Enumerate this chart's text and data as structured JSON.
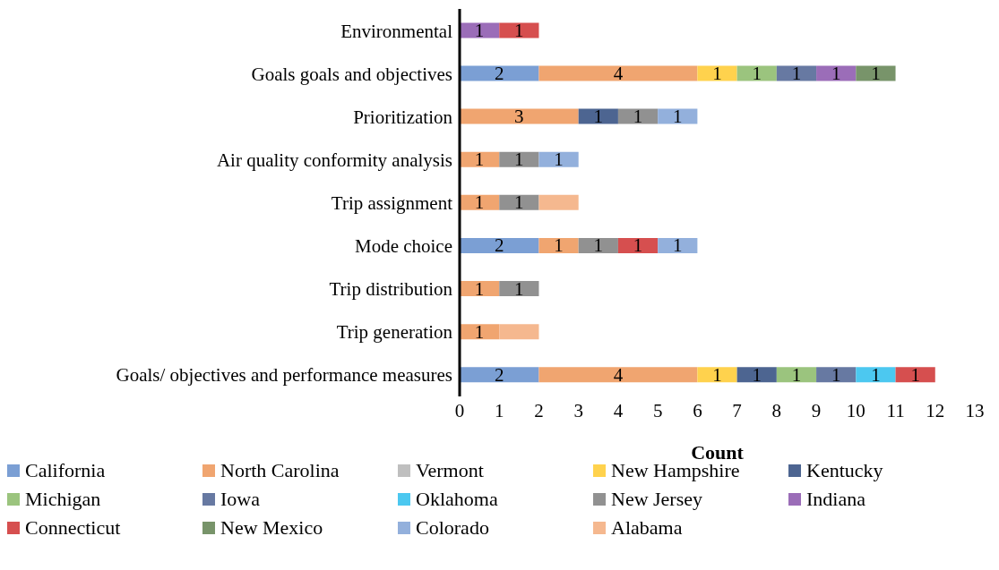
{
  "chart_data": {
    "type": "bar",
    "orientation": "horizontal",
    "stacked": true,
    "data_labels": true,
    "legend": "bottom",
    "xlabel": "Count",
    "xlim": [
      0,
      13
    ],
    "xticks": [
      0,
      1,
      2,
      3,
      4,
      5,
      6,
      7,
      8,
      9,
      10,
      11,
      12,
      13
    ],
    "categories": [
      "Environmental",
      "Goals goals and objectives",
      "Prioritization",
      "Air quality conformity analysis",
      "Trip assignment",
      "Mode choice",
      "Trip distribution",
      "Trip generation",
      "Goals/ objectives and performance measures"
    ],
    "series": [
      {
        "name": "California",
        "color": "#7b9fd4",
        "values": [
          null,
          2,
          null,
          null,
          null,
          2,
          null,
          null,
          2
        ]
      },
      {
        "name": "North Carolina",
        "color": "#f0a570",
        "values": [
          null,
          4,
          3,
          1,
          1,
          1,
          1,
          1,
          4
        ]
      },
      {
        "name": "Vermont",
        "color": "#bfbfbf",
        "values": [
          null,
          null,
          null,
          null,
          null,
          null,
          null,
          null,
          null
        ]
      },
      {
        "name": "New Hampshire",
        "color": "#ffd24d",
        "values": [
          null,
          1,
          null,
          null,
          null,
          null,
          null,
          null,
          1
        ]
      },
      {
        "name": "Kentucky",
        "color": "#4d6591",
        "values": [
          null,
          null,
          1,
          null,
          null,
          null,
          null,
          null,
          1
        ]
      },
      {
        "name": "Michigan",
        "color": "#9bc47e",
        "values": [
          null,
          1,
          null,
          null,
          null,
          null,
          null,
          null,
          1
        ]
      },
      {
        "name": "Iowa",
        "color": "#6779a2",
        "values": [
          null,
          1,
          null,
          null,
          null,
          null,
          null,
          null,
          1
        ]
      },
      {
        "name": "Oklahoma",
        "color": "#4cc8f0",
        "values": [
          null,
          null,
          null,
          null,
          null,
          null,
          null,
          null,
          1
        ]
      },
      {
        "name": "New Jersey",
        "color": "#919191",
        "values": [
          null,
          null,
          1,
          1,
          1,
          1,
          1,
          null,
          null
        ]
      },
      {
        "name": "Indiana",
        "color": "#9b6db8",
        "values": [
          1,
          1,
          null,
          null,
          null,
          null,
          null,
          null,
          null
        ]
      },
      {
        "name": "Connecticut",
        "color": "#d64f4f",
        "values": [
          1,
          null,
          null,
          null,
          null,
          1,
          null,
          null,
          1
        ]
      },
      {
        "name": "New Mexico",
        "color": "#78946a",
        "values": [
          null,
          1,
          null,
          null,
          null,
          null,
          null,
          null,
          null
        ]
      },
      {
        "name": "Colorado",
        "color": "#93b0dc",
        "values": [
          null,
          null,
          1,
          1,
          null,
          1,
          null,
          null,
          null
        ]
      },
      {
        "name": "Alabama",
        "color": "#f5b88f",
        "values": [
          null,
          null,
          null,
          null,
          1,
          null,
          null,
          1,
          null
        ],
        "value_labels": [
          null,
          null,
          null,
          null,
          null,
          null,
          null,
          null,
          null
        ]
      }
    ]
  }
}
